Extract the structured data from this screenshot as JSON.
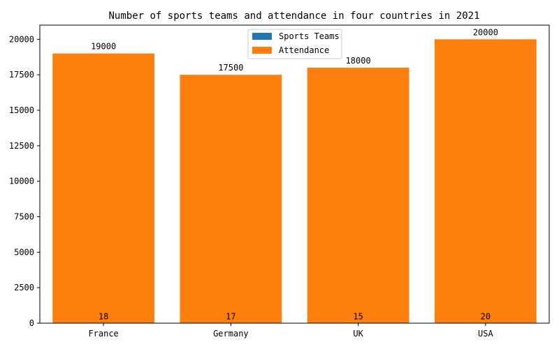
{
  "chart_data": {
    "type": "bar",
    "title": "Number of sports teams and attendance in four countries in 2021",
    "categories": [
      "France",
      "Germany",
      "UK",
      "USA"
    ],
    "series": [
      {
        "name": "Sports Teams",
        "values": [
          18,
          17,
          15,
          20
        ],
        "color": "#1f77b4"
      },
      {
        "name": "Attendance",
        "values": [
          19000,
          17500,
          18000,
          20000
        ],
        "color": "#ff7f0e"
      }
    ],
    "xlabel": "",
    "ylabel": "",
    "ylim": [
      0,
      21000
    ],
    "yticks": [
      0,
      2500,
      5000,
      7500,
      10000,
      12500,
      15000,
      17500,
      20000
    ],
    "legend_position": "top-center",
    "grid": false
  }
}
